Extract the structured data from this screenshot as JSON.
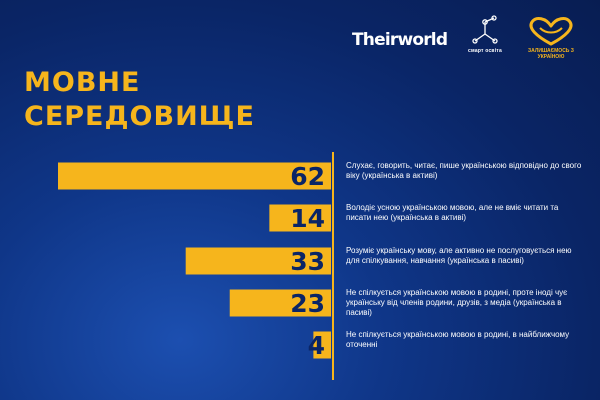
{
  "logos": {
    "theirworld": "Theirworld",
    "smart_osvita": "смарт освіта",
    "ukraine": "ЗАЛИШАЄМОСЬ З УКРАЇНОЮ"
  },
  "title": "МОВНЕ\nСЕРЕДОВИЩЕ",
  "colors": {
    "accent": "#f6b51c",
    "bar_text": "#0a2566",
    "background": "#0a2566",
    "text": "#ffffff"
  },
  "chart_data": {
    "type": "bar",
    "orientation": "horizontal",
    "values": [
      62,
      14,
      33,
      23,
      4
    ],
    "xlim": [
      0,
      62
    ],
    "categories": [
      "Слухає, говорить, читає, пише українською відповідно до свого віку (українська в активі)",
      "Володіє усною українською мовою, але не вміє читати та писати нею (українська в активі)",
      "Розуміє українську мову, але активно не послуговується нею для спілкування, навчання (українська в пасиві)",
      "Не спілкується українською мовою в родині, проте іноді чує українську від членів родини, друзів, з медіа (українська в пасиві)",
      "Не спілкується українською мовою в родині, в найближчому оточенні"
    ]
  }
}
